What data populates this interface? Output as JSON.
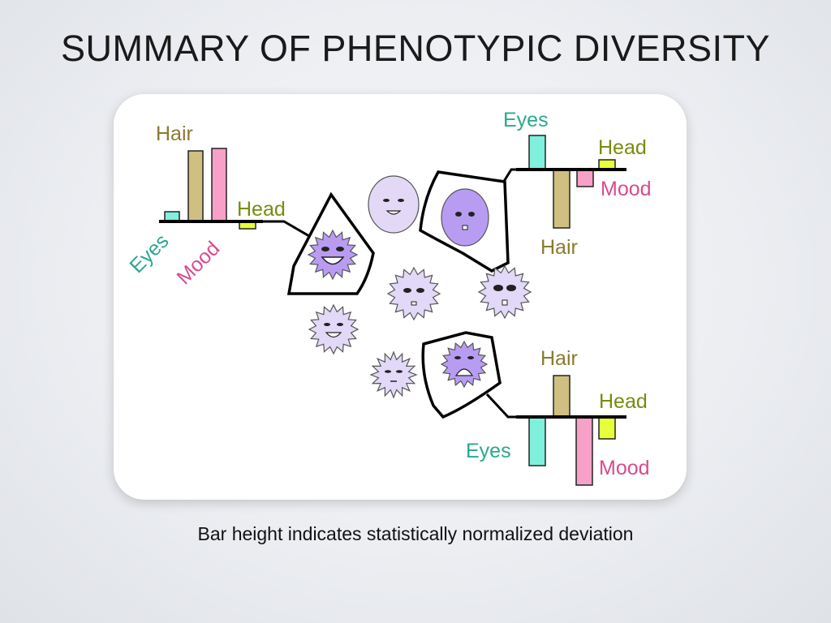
{
  "slide": {
    "title": "SUMMARY OF PHENOTYPIC DIVERSITY",
    "caption": "Bar height indicates statistically normalized deviation"
  },
  "colors": {
    "eyes": "#7ff0dc",
    "hair": "#cfbf80",
    "mood": "#f7a0c8",
    "head": "#e6ff3a",
    "eyes_label": "#2aa890",
    "hair_label": "#8a7a30",
    "mood_label": "#d84b8e",
    "head_label": "#7a8a10",
    "face_fill": "#cdbbf0",
    "face_fill_light": "#e2d8f6",
    "face_fill_dark": "#b89cf0"
  },
  "bar_groups": [
    {
      "id": "left",
      "bars": [
        {
          "trait": "Eyes",
          "value": 0.2
        },
        {
          "trait": "Hair",
          "value": 1.45
        },
        {
          "trait": "Mood",
          "value": 1.5
        },
        {
          "trait": "Head",
          "value": -0.15
        }
      ]
    },
    {
      "id": "top-right",
      "bars": [
        {
          "trait": "Eyes",
          "value": 0.7
        },
        {
          "trait": "Hair",
          "value": -1.2
        },
        {
          "trait": "Mood",
          "value": -0.35
        },
        {
          "trait": "Head",
          "value": 0.2
        }
      ]
    },
    {
      "id": "bottom-right",
      "bars": [
        {
          "trait": "Eyes",
          "value": -1.0
        },
        {
          "trait": "Hair",
          "value": 0.85
        },
        {
          "trait": "Mood",
          "value": -1.4
        },
        {
          "trait": "Head",
          "value": -0.45
        }
      ]
    }
  ],
  "labels": {
    "left": {
      "eyes": "Eyes",
      "hair": "Hair",
      "mood": "Mood",
      "head": "Head"
    },
    "top_right": {
      "eyes": "Eyes",
      "hair": "Hair",
      "mood": "Mood",
      "head": "Head"
    },
    "bottom_right": {
      "eyes": "Eyes",
      "hair": "Hair",
      "mood": "Mood",
      "head": "Head"
    }
  }
}
